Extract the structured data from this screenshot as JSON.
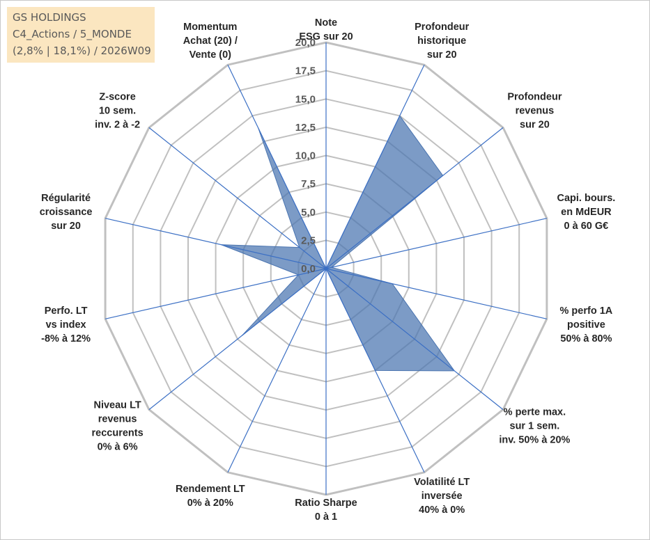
{
  "header": {
    "line1": "GS HOLDINGS",
    "line2": "C4_Actions / 5_MONDE",
    "line3": "(2,8% | 18,1%) / 2026W09"
  },
  "colors": {
    "fill": "#4a74b0",
    "grid": "#c0c0c0",
    "spoke": "#3b6fc4"
  },
  "chart_data": {
    "type": "radar",
    "r_min": 0,
    "r_max": 20,
    "r_step": 2.5,
    "tick_labels": [
      "0,0",
      "2,5",
      "5,0",
      "7,5",
      "10,0",
      "12,5",
      "15,0",
      "17,5",
      "20,0"
    ],
    "axes": [
      {
        "label": [
          "Note",
          "ESG sur 20"
        ],
        "value": 0
      },
      {
        "label": [
          "Profondeur",
          "historique",
          "sur 20"
        ],
        "value": 15
      },
      {
        "label": [
          "Profondeur",
          "revenus",
          "sur 20"
        ],
        "value": 13.2
      },
      {
        "label": [
          "Capi. bours.",
          "en MdEUR",
          "0 à 60 G€"
        ],
        "value": 0.5
      },
      {
        "label": [
          "% perfo 1A",
          "positive",
          "50% à 80%"
        ],
        "value": 6
      },
      {
        "label": [
          "% perte max.",
          "sur 1 sem.",
          "inv. 50% à 20%"
        ],
        "value": 14.5
      },
      {
        "label": [
          "Volatilité LT",
          "inversée",
          "40% à 0%"
        ],
        "value": 10
      },
      {
        "label": [
          "Ratio Sharpe",
          "0 à 1"
        ],
        "value": 0
      },
      {
        "label": [
          "Rendement LT",
          "0% à 20%"
        ],
        "value": 0
      },
      {
        "label": [
          "Niveau LT",
          "revenus",
          "reccurents",
          "0% à 6%"
        ],
        "value": 9.5
      },
      {
        "label": [
          "Perfo. LT",
          "vs index",
          "-8% à 12%"
        ],
        "value": 2.5
      },
      {
        "label": [
          "Régularité",
          "croissance",
          "sur 20"
        ],
        "value": 9.5
      },
      {
        "label": [
          "Z-score",
          "10 sem.",
          "inv. 2 à -2"
        ],
        "value": 3
      },
      {
        "label": [
          "Momentum",
          "Achat (20) /",
          "Vente (0)"
        ],
        "value": 13.8
      }
    ]
  }
}
